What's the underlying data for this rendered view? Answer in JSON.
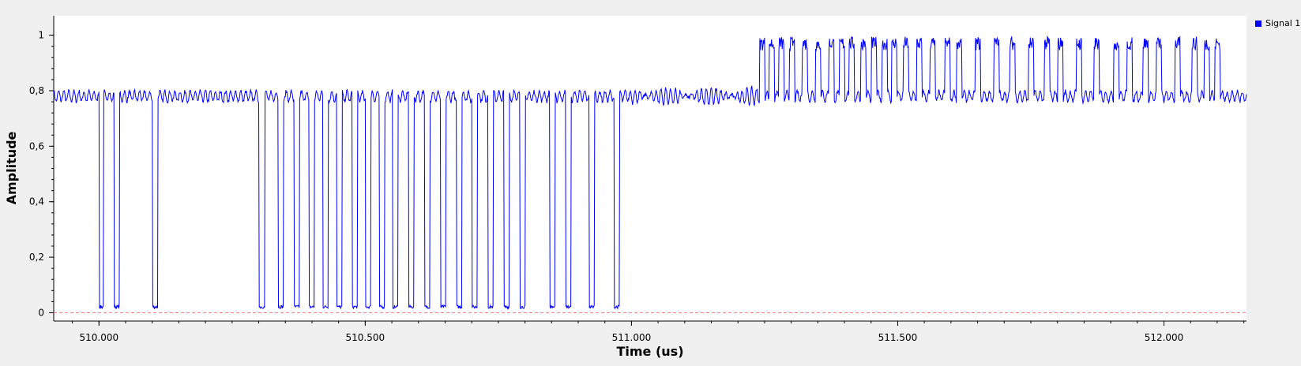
{
  "chart_data": {
    "type": "line",
    "xlabel": "Time (us)",
    "ylabel": "Amplitude",
    "xlim": [
      509.915,
      512.155
    ],
    "ylim": [
      -0.03,
      1.07
    ],
    "xticks": [
      510.0,
      510.5,
      511.0,
      511.5,
      512.0
    ],
    "xtick_labels": [
      "510.000",
      "510.500",
      "511.000",
      "511.500",
      "512.000"
    ],
    "yticks": [
      0,
      0.2,
      0.4,
      0.6,
      0.8,
      1
    ],
    "ytick_labels": [
      "0",
      "0,2",
      "0,4",
      "0,6",
      "0,8",
      "1"
    ],
    "grid": false,
    "legend_position": "top-right",
    "reference_line": {
      "y": 0,
      "color": "#ff8080",
      "style": "dashed"
    },
    "series": [
      {
        "name": "Signal 1",
        "color": "#0000ff",
        "baseline": 0.78,
        "phase1_end": 511.0,
        "phase2_start": 511.24,
        "high_level": 0.97,
        "low_pulses": [
          [
            510.0,
            510.008
          ],
          [
            510.028,
            510.038
          ],
          [
            510.1,
            510.11
          ],
          [
            510.3,
            510.311
          ],
          [
            510.336,
            510.346
          ],
          [
            510.366,
            510.376
          ],
          [
            510.394,
            510.404
          ],
          [
            510.42,
            510.43
          ],
          [
            510.446,
            510.456
          ],
          [
            510.475,
            510.485
          ],
          [
            510.5,
            510.51
          ],
          [
            510.526,
            510.536
          ],
          [
            510.551,
            510.561
          ],
          [
            510.581,
            510.591
          ],
          [
            510.611,
            510.621
          ],
          [
            510.641,
            510.651
          ],
          [
            510.671,
            510.681
          ],
          [
            510.7,
            510.71
          ],
          [
            510.73,
            510.74
          ],
          [
            510.76,
            510.77
          ],
          [
            510.79,
            510.8
          ],
          [
            510.846,
            510.856
          ],
          [
            510.876,
            510.886
          ],
          [
            510.92,
            510.93
          ],
          [
            510.967,
            510.977
          ]
        ],
        "high_pulses": [
          [
            511.24,
            511.25
          ],
          [
            511.258,
            511.268
          ],
          [
            511.276,
            511.286
          ],
          [
            511.296,
            511.306
          ],
          [
            511.32,
            511.33
          ],
          [
            511.345,
            511.355
          ],
          [
            511.37,
            511.38
          ],
          [
            511.39,
            511.4
          ],
          [
            511.408,
            511.418
          ],
          [
            511.43,
            511.44
          ],
          [
            511.45,
            511.46
          ],
          [
            511.47,
            511.48
          ],
          [
            511.488,
            511.498
          ],
          [
            511.51,
            511.52
          ],
          [
            511.535,
            511.545
          ],
          [
            511.56,
            511.57
          ],
          [
            511.588,
            511.598
          ],
          [
            511.61,
            511.62
          ],
          [
            511.645,
            511.655
          ],
          [
            511.68,
            511.69
          ],
          [
            511.71,
            511.72
          ],
          [
            511.745,
            511.755
          ],
          [
            511.775,
            511.785
          ],
          [
            511.8,
            511.81
          ],
          [
            511.835,
            511.845
          ],
          [
            511.868,
            511.878
          ],
          [
            511.905,
            511.915
          ],
          [
            511.93,
            511.94
          ],
          [
            511.96,
            511.97
          ],
          [
            511.985,
            511.995
          ],
          [
            512.02,
            512.03
          ],
          [
            512.052,
            512.062
          ],
          [
            512.075,
            512.085
          ],
          [
            512.095,
            512.105
          ]
        ]
      }
    ]
  }
}
